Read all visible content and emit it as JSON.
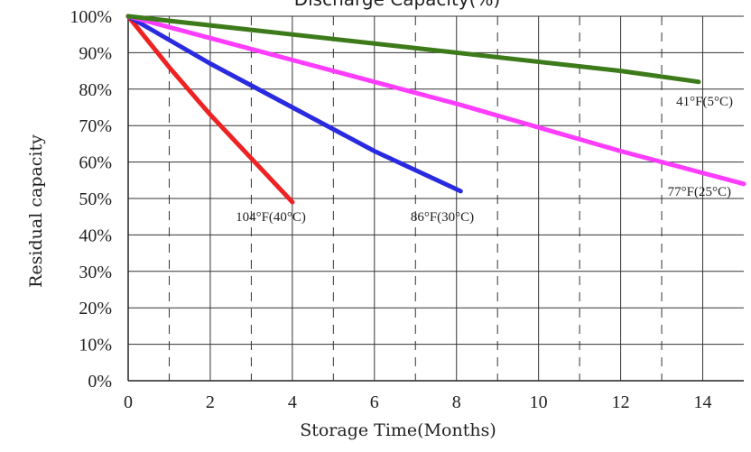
{
  "chart_data": {
    "type": "line",
    "title": "Discharge Capacity(%)",
    "xlabel": "Storage Time(Months)",
    "ylabel": "Residual capacity",
    "xlim": [
      0,
      15
    ],
    "ylim": [
      0,
      100
    ],
    "x_ticks": [
      0,
      2,
      4,
      6,
      8,
      10,
      12,
      14
    ],
    "x_tick_labels": [
      "0",
      "2",
      "4",
      "6",
      "8",
      "10",
      "12",
      "14"
    ],
    "y_ticks": [
      0,
      10,
      20,
      30,
      40,
      50,
      60,
      70,
      80,
      90,
      100
    ],
    "y_tick_labels": [
      "0%",
      "10%",
      "20%",
      "30%",
      "40%",
      "50%",
      "60%",
      "70%",
      "80%",
      "90%",
      "100%"
    ],
    "grid": {
      "major": "solid",
      "minor": "dashed",
      "x_minor_at": [
        1,
        3,
        5,
        7,
        9,
        11,
        13
      ]
    },
    "series": [
      {
        "name": "104°F(40°C)",
        "color": "#ee2222",
        "points": [
          [
            0,
            100
          ],
          [
            1,
            86
          ],
          [
            2,
            73
          ],
          [
            3,
            61
          ],
          [
            4,
            49
          ]
        ]
      },
      {
        "name": "86°F(30°C)",
        "color": "#2a2ae0",
        "points": [
          [
            0,
            100
          ],
          [
            2,
            87
          ],
          [
            4,
            75
          ],
          [
            6,
            63
          ],
          [
            8.1,
            52
          ]
        ]
      },
      {
        "name": "77°F(25°C)",
        "color": "#ff3dff",
        "points": [
          [
            0,
            100
          ],
          [
            4,
            88
          ],
          [
            8,
            76
          ],
          [
            12,
            63
          ],
          [
            15,
            54
          ]
        ]
      },
      {
        "name": "41°F(5°C)",
        "color": "#3d7a1a",
        "points": [
          [
            0,
            100
          ],
          [
            4,
            95
          ],
          [
            8,
            90
          ],
          [
            12,
            85
          ],
          [
            13.9,
            82
          ]
        ]
      }
    ]
  }
}
